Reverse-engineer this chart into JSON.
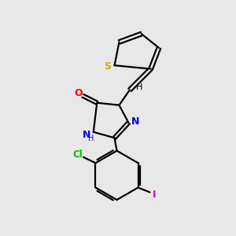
{
  "background_color": "#e8e8e8",
  "bond_color": "#000000",
  "atom_colors": {
    "S": "#ccaa00",
    "O": "#ff0000",
    "N": "#0000ee",
    "Cl": "#00bb00",
    "I": "#cc00cc",
    "H": "#000000",
    "C": "#000000"
  },
  "figsize": [
    3.0,
    3.0
  ],
  "dpi": 100
}
